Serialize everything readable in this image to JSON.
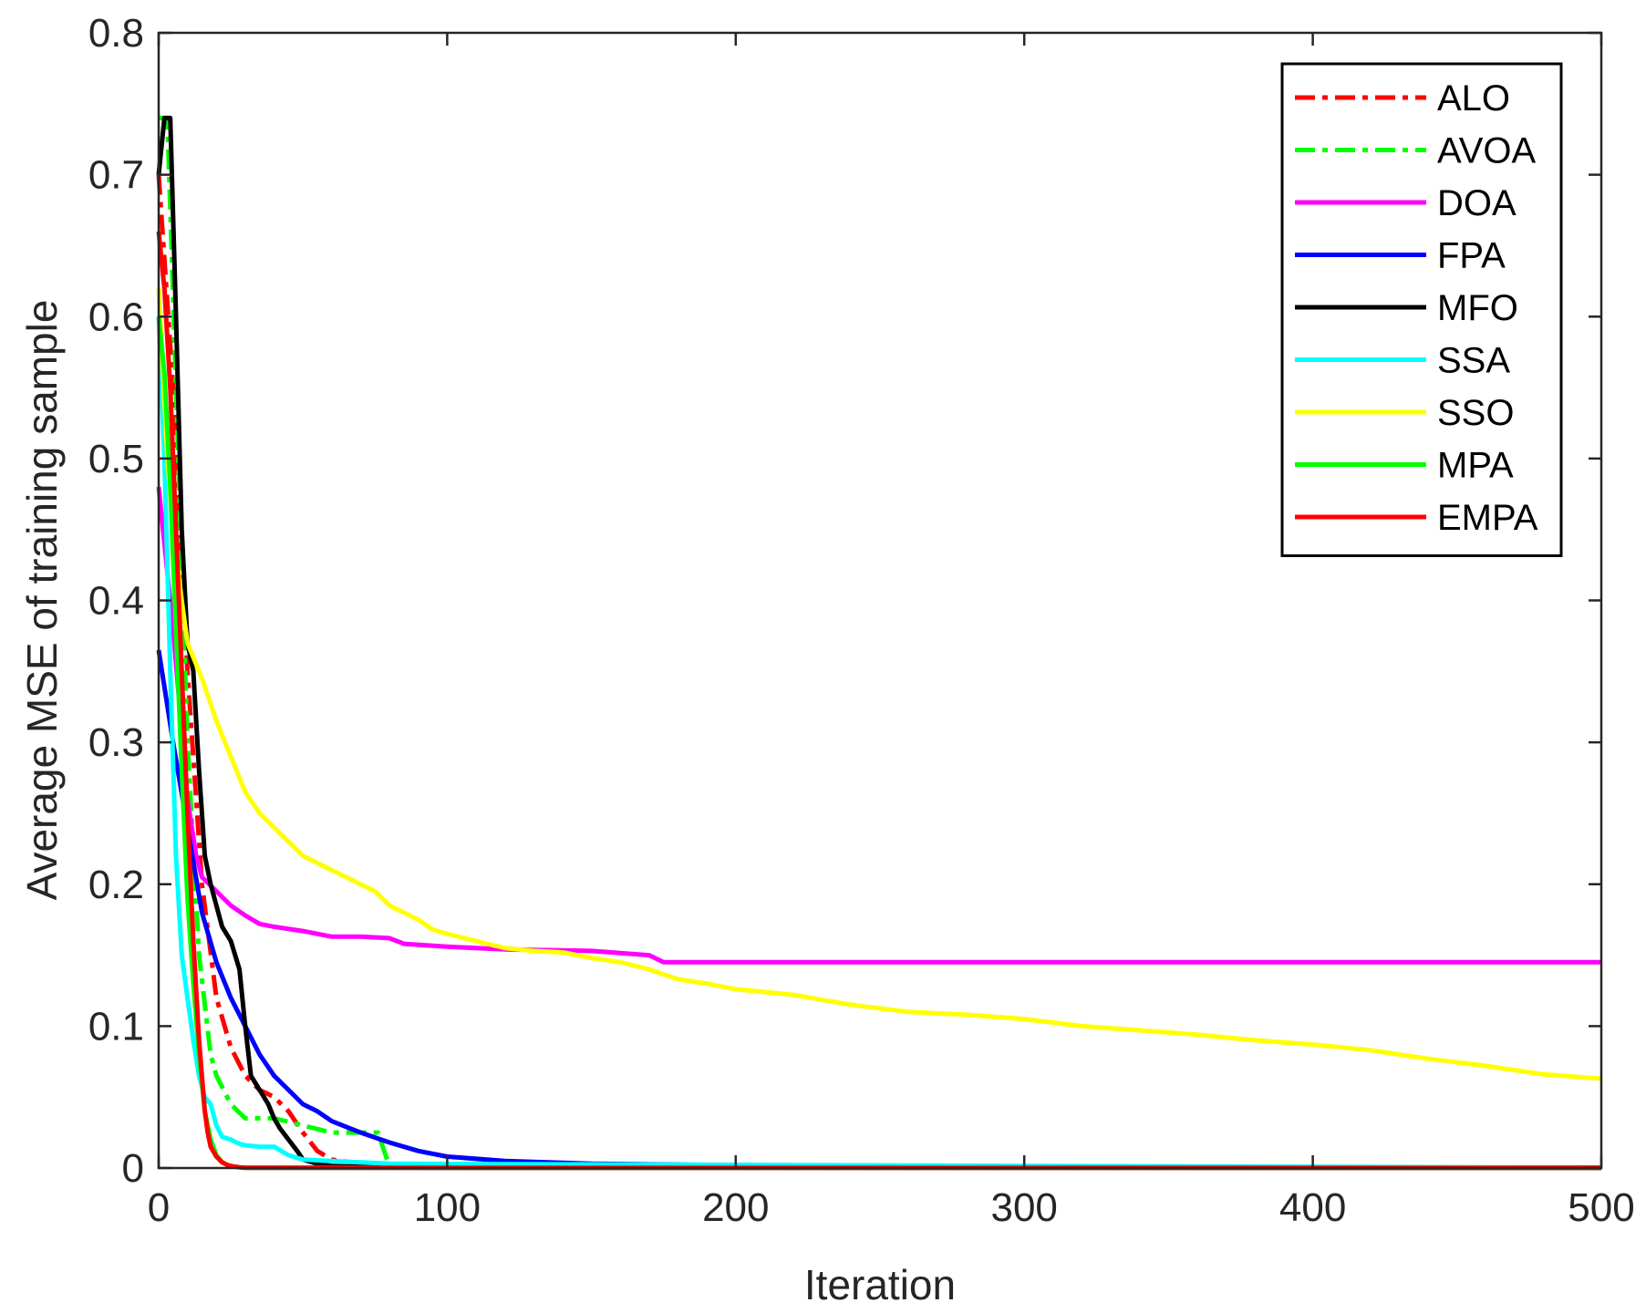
{
  "chart_data": {
    "type": "line",
    "xlabel": "Iteration",
    "ylabel": "Average MSE of training sample",
    "xlim": [
      0,
      500
    ],
    "ylim": [
      0,
      0.8
    ],
    "xticks": [
      0,
      100,
      200,
      300,
      400,
      500
    ],
    "xtick_labels": [
      "0",
      "100",
      "200",
      "300",
      "400",
      "500"
    ],
    "yticks": [
      0,
      0.1,
      0.2,
      0.3,
      0.4,
      0.5,
      0.6,
      0.7,
      0.8
    ],
    "ytick_labels": [
      "0",
      "0.1",
      "0.2",
      "0.3",
      "0.4",
      "0.5",
      "0.6",
      "0.7",
      "0.8"
    ],
    "grid": false,
    "legend_position": "top-right",
    "series": [
      {
        "name": "ALO",
        "color": "#ff0000",
        "dash": "dashdot",
        "x": [
          0,
          5,
          10,
          15,
          20,
          25,
          30,
          35,
          40,
          45,
          50,
          55,
          60,
          70,
          80,
          100,
          150,
          200,
          500
        ],
        "y": [
          0.7,
          0.55,
          0.35,
          0.2,
          0.12,
          0.085,
          0.065,
          0.055,
          0.05,
          0.04,
          0.025,
          0.012,
          0.006,
          0.003,
          0.002,
          0.001,
          0.0005,
          0.0002,
          0.0001
        ]
      },
      {
        "name": "AVOA",
        "color": "#00ff00",
        "dash": "dashdot",
        "x": [
          0,
          3,
          6,
          10,
          14,
          18,
          20,
          25,
          30,
          40,
          50,
          60,
          70,
          76,
          80,
          90,
          500
        ],
        "y": [
          0.74,
          0.74,
          0.55,
          0.3,
          0.15,
          0.08,
          0.065,
          0.045,
          0.035,
          0.035,
          0.03,
          0.025,
          0.025,
          0.025,
          0.001,
          0.0005,
          0.0001
        ]
      },
      {
        "name": "DOA",
        "color": "#ff00ff",
        "dash": "solid",
        "x": [
          0,
          5,
          10,
          13,
          15,
          20,
          25,
          30,
          35,
          40,
          50,
          55,
          60,
          70,
          80,
          85,
          100,
          120,
          150,
          170,
          175,
          200,
          300,
          400,
          500
        ],
        "y": [
          0.48,
          0.38,
          0.26,
          0.22,
          0.205,
          0.195,
          0.185,
          0.178,
          0.172,
          0.17,
          0.167,
          0.165,
          0.163,
          0.163,
          0.162,
          0.158,
          0.156,
          0.154,
          0.153,
          0.15,
          0.145,
          0.145,
          0.145,
          0.145,
          0.145
        ]
      },
      {
        "name": "FPA",
        "color": "#0000ff",
        "dash": "solid",
        "x": [
          0,
          5,
          10,
          15,
          20,
          25,
          30,
          35,
          40,
          45,
          50,
          55,
          60,
          70,
          80,
          90,
          100,
          120,
          150,
          200,
          300,
          500
        ],
        "y": [
          0.365,
          0.3,
          0.24,
          0.18,
          0.145,
          0.12,
          0.1,
          0.08,
          0.065,
          0.055,
          0.045,
          0.04,
          0.033,
          0.025,
          0.018,
          0.012,
          0.008,
          0.005,
          0.003,
          0.002,
          0.0005,
          0.0002
        ]
      },
      {
        "name": "MFO",
        "color": "#000000",
        "dash": "solid",
        "x": [
          0,
          2,
          4,
          6,
          8,
          10,
          12,
          14,
          16,
          18,
          20,
          22,
          25,
          28,
          30,
          32,
          35,
          38,
          40,
          42,
          45,
          48,
          50,
          55,
          60,
          70,
          100,
          500
        ],
        "y": [
          0.7,
          0.74,
          0.74,
          0.6,
          0.45,
          0.37,
          0.35,
          0.28,
          0.22,
          0.2,
          0.185,
          0.17,
          0.16,
          0.14,
          0.1,
          0.065,
          0.055,
          0.045,
          0.035,
          0.028,
          0.02,
          0.012,
          0.006,
          0.003,
          0.0015,
          0.0008,
          0.0003,
          0.0001
        ]
      },
      {
        "name": "SSA",
        "color": "#00ffff",
        "dash": "solid",
        "x": [
          0,
          2,
          4,
          6,
          8,
          10,
          12,
          14,
          16,
          18,
          20,
          22,
          25,
          28,
          30,
          35,
          40,
          45,
          50,
          60,
          70,
          80,
          500
        ],
        "y": [
          0.6,
          0.5,
          0.35,
          0.22,
          0.15,
          0.12,
          0.09,
          0.065,
          0.05,
          0.045,
          0.03,
          0.022,
          0.02,
          0.017,
          0.016,
          0.015,
          0.015,
          0.009,
          0.006,
          0.005,
          0.004,
          0.003,
          0.0001
        ]
      },
      {
        "name": "SSO",
        "color": "#ffff00",
        "dash": "solid",
        "x": [
          0,
          3,
          5,
          8,
          10,
          15,
          20,
          25,
          30,
          35,
          40,
          45,
          50,
          55,
          60,
          65,
          70,
          75,
          80,
          85,
          90,
          95,
          100,
          110,
          120,
          130,
          140,
          150,
          160,
          170,
          180,
          190,
          200,
          220,
          240,
          260,
          280,
          300,
          320,
          340,
          360,
          380,
          400,
          420,
          440,
          460,
          480,
          500
        ],
        "y": [
          0.62,
          0.5,
          0.45,
          0.4,
          0.37,
          0.345,
          0.315,
          0.29,
          0.265,
          0.25,
          0.24,
          0.23,
          0.22,
          0.215,
          0.21,
          0.205,
          0.2,
          0.195,
          0.185,
          0.18,
          0.175,
          0.168,
          0.165,
          0.16,
          0.155,
          0.153,
          0.152,
          0.148,
          0.145,
          0.14,
          0.133,
          0.13,
          0.126,
          0.122,
          0.115,
          0.11,
          0.108,
          0.105,
          0.1,
          0.097,
          0.094,
          0.09,
          0.087,
          0.083,
          0.077,
          0.072,
          0.066,
          0.063
        ]
      },
      {
        "name": "MPA",
        "color": "#00ff00",
        "dash": "solid",
        "x": [
          0,
          2,
          4,
          6,
          8,
          10,
          12,
          14,
          16,
          18,
          20,
          22,
          24,
          26,
          28,
          30,
          40,
          500
        ],
        "y": [
          0.6,
          0.56,
          0.48,
          0.38,
          0.28,
          0.19,
          0.13,
          0.08,
          0.04,
          0.02,
          0.009,
          0.004,
          0.002,
          0.001,
          0.0005,
          0.0002,
          0.0001,
          5e-05
        ]
      },
      {
        "name": "EMPA",
        "color": "#ff0000",
        "dash": "solid",
        "x": [
          0,
          2,
          4,
          6,
          8,
          10,
          12,
          14,
          16,
          17,
          18,
          20,
          22,
          24,
          26,
          28,
          30,
          40,
          500
        ],
        "y": [
          0.66,
          0.62,
          0.55,
          0.45,
          0.35,
          0.25,
          0.16,
          0.09,
          0.04,
          0.025,
          0.015,
          0.008,
          0.004,
          0.002,
          0.001,
          0.0005,
          0.0002,
          0.0001,
          5e-05
        ]
      }
    ]
  }
}
